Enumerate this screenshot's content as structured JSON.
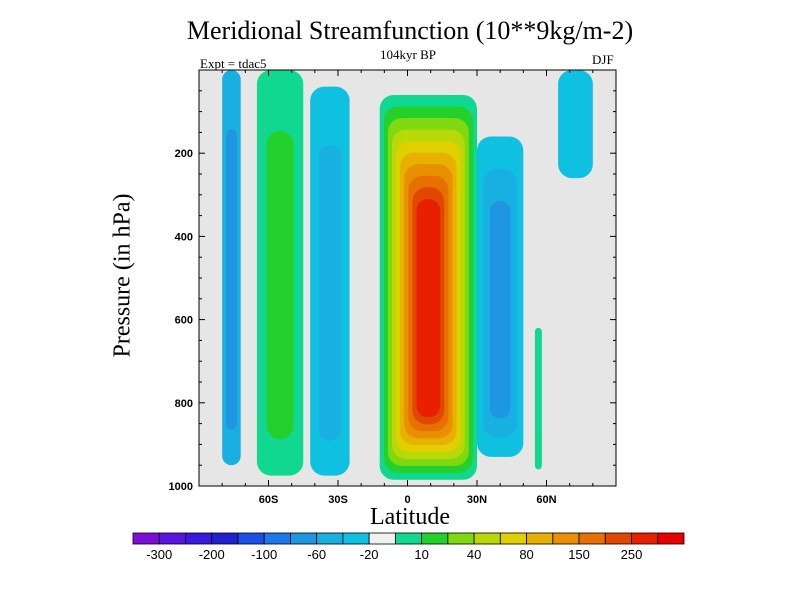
{
  "chart_data": {
    "type": "contour",
    "title": "Meridional Streamfunction (10**9kg/m-2)",
    "subtitle": "104kyr BP",
    "expt_label": "Expt = tdac5",
    "season": "DJF",
    "xlabel": "Latitude",
    "ylabel": "Pressure (in hPa)",
    "xlim": [
      -90,
      90
    ],
    "ylim": [
      1000,
      0
    ],
    "x_ticks": [
      {
        "value": -60,
        "label": "60S"
      },
      {
        "value": -30,
        "label": "30S"
      },
      {
        "value": 0,
        "label": "0"
      },
      {
        "value": 30,
        "label": "30N"
      },
      {
        "value": 60,
        "label": "60N"
      }
    ],
    "y_ticks": [
      {
        "value": 200,
        "label": "200"
      },
      {
        "value": 400,
        "label": "400"
      },
      {
        "value": 600,
        "label": "600"
      },
      {
        "value": 800,
        "label": "800"
      },
      {
        "value": 1000,
        "label": "1000"
      }
    ],
    "colorbar": {
      "colors": [
        "#7a10d8",
        "#5a14e0",
        "#3a18e0",
        "#2020d0",
        "#1c4ee8",
        "#1e78e8",
        "#1e96e0",
        "#18b0e0",
        "#10c0e0",
        "#f0f0f0",
        "#10d890",
        "#24d02c",
        "#80d810",
        "#b8d808",
        "#e0d000",
        "#e8b000",
        "#e89000",
        "#e87000",
        "#e04800",
        "#e82000",
        "#e80000"
      ],
      "labels": [
        {
          "index": 1,
          "text": "-300"
        },
        {
          "index": 3,
          "text": "-200"
        },
        {
          "index": 5,
          "text": "-100"
        },
        {
          "index": 7,
          "text": "-60"
        },
        {
          "index": 9,
          "text": "-20"
        },
        {
          "index": 11,
          "text": "10"
        },
        {
          "index": 13,
          "text": "40"
        },
        {
          "index": 15,
          "text": "80"
        },
        {
          "index": 17,
          "text": "150"
        },
        {
          "index": 19,
          "text": "250"
        }
      ]
    },
    "background_color": "#e6e6e6",
    "cells": [
      {
        "name": "sh-polar-cell",
        "lat": [
          -80,
          -72
        ],
        "p": [
          0,
          950
        ],
        "levels": [
          "#18b0e0",
          "#1e96e0"
        ]
      },
      {
        "name": "sh-ferrel-band",
        "lat": [
          -65,
          -45
        ],
        "p": [
          0,
          975
        ],
        "levels": [
          "#10d890",
          "#24d02c"
        ]
      },
      {
        "name": "sh-subtropical-cell",
        "lat": [
          -42,
          -25
        ],
        "p": [
          40,
          975
        ],
        "levels": [
          "#10c0e0",
          "#18b0e0"
        ]
      },
      {
        "name": "hadley-cell",
        "lat": [
          -12,
          30
        ],
        "p": [
          60,
          985
        ],
        "levels": [
          "#10d890",
          "#24d02c",
          "#80d810",
          "#b8d808",
          "#e0d000",
          "#e8b000",
          "#e89000",
          "#e87000",
          "#e04800",
          "#e82000"
        ]
      },
      {
        "name": "nh-ferrel-cell",
        "lat": [
          30,
          50
        ],
        "p": [
          160,
          930
        ],
        "levels": [
          "#10c0e0",
          "#18b0e0",
          "#1e96e0"
        ]
      },
      {
        "name": "nh-polar-band",
        "lat": [
          55,
          58
        ],
        "p": [
          620,
          960
        ],
        "levels": [
          "#10d890"
        ]
      },
      {
        "name": "nh-upper-cell",
        "lat": [
          65,
          80
        ],
        "p": [
          0,
          260
        ],
        "levels": [
          "#10c0e0"
        ]
      }
    ]
  }
}
